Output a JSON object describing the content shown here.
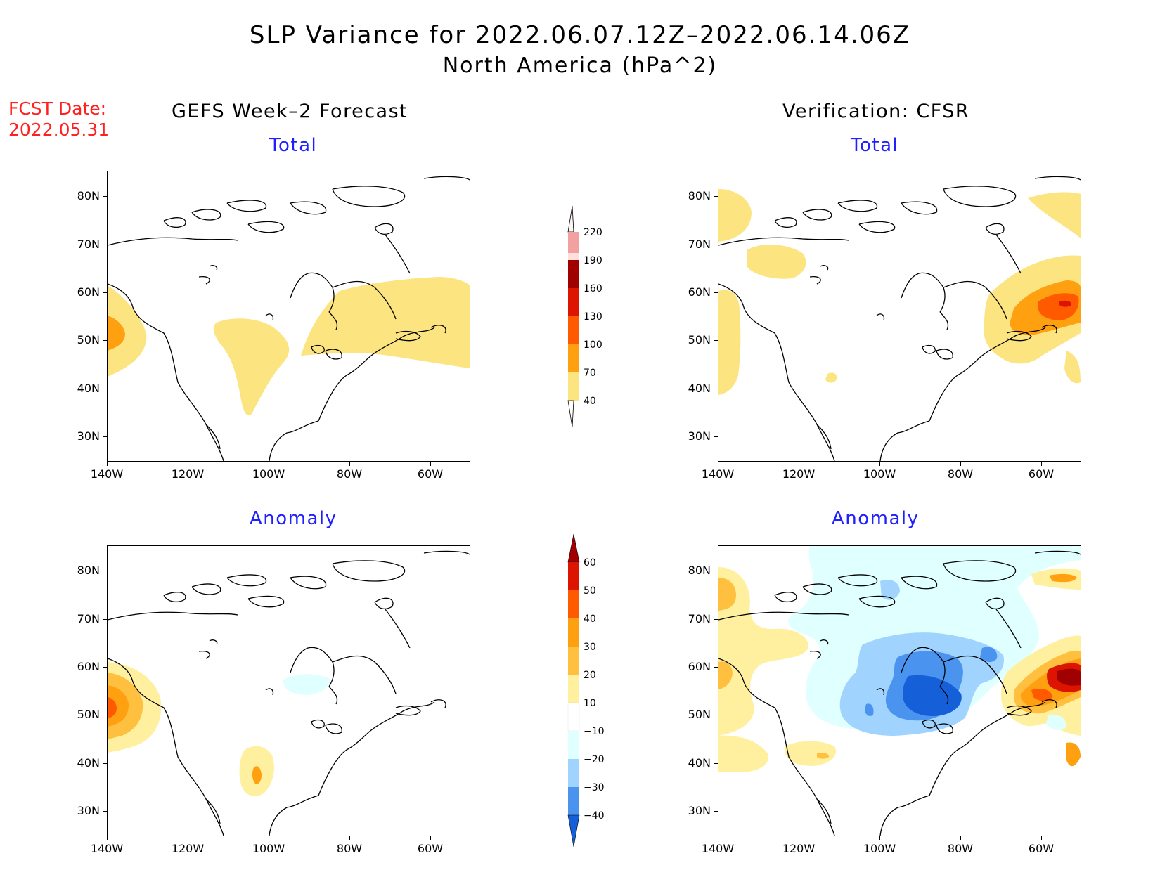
{
  "title": {
    "line1": "SLP Variance for 2022.06.07.12Z–2022.06.14.06Z",
    "line2": "North America (hPa^2)"
  },
  "fcst": {
    "line1": "FCST Date:",
    "line2": "2022.05.31"
  },
  "columns": {
    "left": "GEFS Week–2 Forecast",
    "right": "Verification: CFSR"
  },
  "panel_titles": {
    "total": "Total",
    "anomaly": "Anomaly"
  },
  "axes": {
    "lat_labels": [
      "80N",
      "70N",
      "60N",
      "50N",
      "40N",
      "30N"
    ],
    "lon_labels": [
      "140W",
      "120W",
      "100W",
      "80W",
      "60W"
    ]
  },
  "colorbars": {
    "total": {
      "levels": [
        "220",
        "190",
        "160",
        "130",
        "100",
        "70",
        "40"
      ],
      "colors": [
        "#ffe0dc",
        "#f3a0a0",
        "#a00000",
        "#dd1500",
        "#ff5a00",
        "#ffa010",
        "#fce480"
      ]
    },
    "anomaly": {
      "levels": [
        "60",
        "50",
        "40",
        "30",
        "20",
        "10",
        "−10",
        "−20",
        "−30",
        "−40"
      ],
      "colors": [
        "#a00000",
        "#dd1500",
        "#ff5a00",
        "#ffa010",
        "#ffc040",
        "#fff0a0",
        "#ffffff",
        "#e0ffff",
        "#a0d4ff",
        "#4a94f0",
        "#1560d8"
      ]
    }
  },
  "colors": {
    "fill_yellow": "#fce480",
    "fill_lightyellow": "#fff0a0",
    "fill_orange": "#ffa010",
    "fill_darkorange": "#ff5a00",
    "fill_red": "#dd1500",
    "fill_darkred": "#a00000",
    "fill_lightblue": "#e0ffff",
    "fill_blue1": "#a0d4ff",
    "fill_blue2": "#4a94f0",
    "fill_blue3": "#1560d8"
  }
}
